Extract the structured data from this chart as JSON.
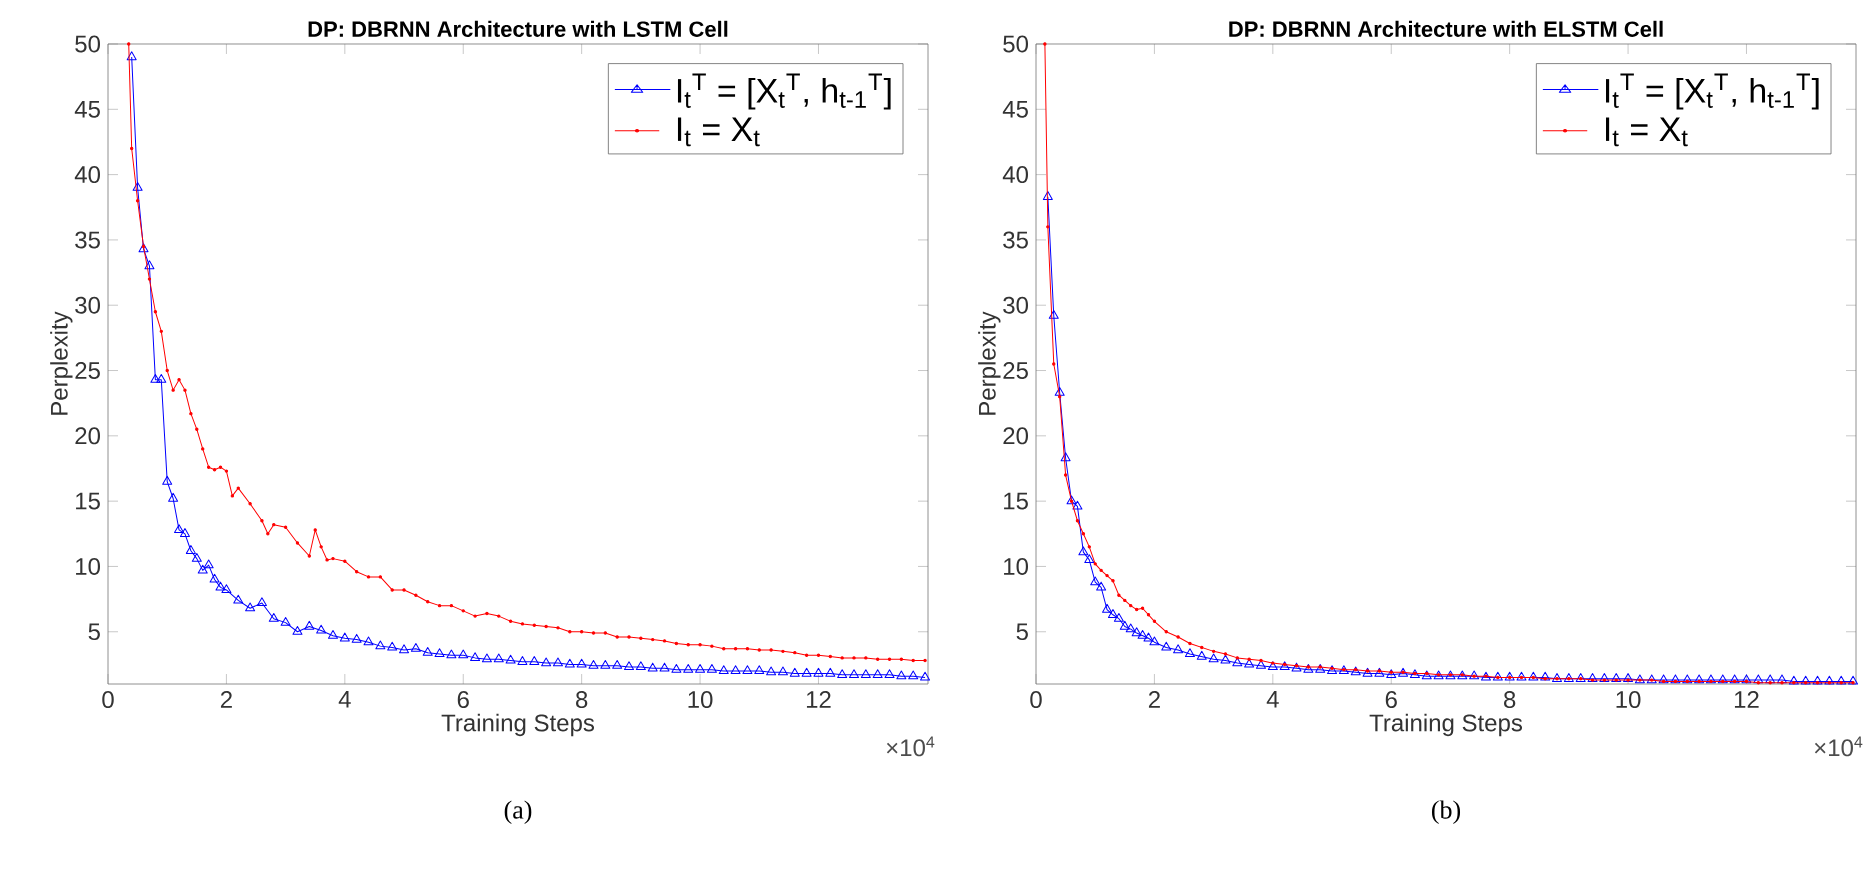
{
  "chart_data": [
    {
      "type": "line",
      "title": "DP: DBRNN Architecture with LSTM Cell",
      "xlabel": "Training Steps",
      "ylabel": "Perplexity",
      "xlim": [
        0,
        13.85
      ],
      "ylim": [
        1,
        50
      ],
      "xticks": [
        0,
        2,
        4,
        6,
        8,
        10,
        12
      ],
      "yticks": [
        5,
        10,
        15,
        20,
        25,
        30,
        35,
        40,
        45,
        50
      ],
      "legend": "top right",
      "line_style": "solid",
      "annotations": [
        "×10$^{4}$",
        "(a)"
      ],
      "series": [
        {
          "name": "I$_{t}$$^{T}$ = [X$_{t}$$^{T}$, h$_{t-1}$$^{T}$]",
          "color": "#0000ff",
          "marker": "triangle",
          "x": [
            0.4,
            0.5,
            0.6,
            0.7,
            0.8,
            0.9,
            1.0,
            1.1,
            1.2,
            1.3,
            1.4,
            1.5,
            1.6,
            1.7,
            1.8,
            1.9,
            2.0,
            2.2,
            2.4,
            2.6,
            2.8,
            3.0,
            3.2,
            3.4,
            3.6,
            3.8,
            4.0,
            4.2,
            4.4,
            4.6,
            4.8,
            5.0,
            5.2,
            5.4,
            5.6,
            5.8,
            6.0,
            6.2,
            6.4,
            6.6,
            6.8,
            7.0,
            7.2,
            7.4,
            7.6,
            7.8,
            8.0,
            8.2,
            8.4,
            8.6,
            8.8,
            9.0,
            9.2,
            9.4,
            9.6,
            9.8,
            10.0,
            10.2,
            10.4,
            10.6,
            10.8,
            11.0,
            11.2,
            11.4,
            11.6,
            11.8,
            12.0,
            12.2,
            12.4,
            12.6,
            12.8,
            13.0,
            13.2,
            13.4,
            13.6,
            13.8
          ],
          "values": [
            49,
            39,
            34.3,
            33,
            24.3,
            24.3,
            16.5,
            15.2,
            12.8,
            12.5,
            11.2,
            10.6,
            9.7,
            10.1,
            9.0,
            8.4,
            8.2,
            7.4,
            6.8,
            7.2,
            6.0,
            5.7,
            5.0,
            5.4,
            5.1,
            4.7,
            4.5,
            4.4,
            4.2,
            3.9,
            3.8,
            3.6,
            3.7,
            3.4,
            3.3,
            3.2,
            3.2,
            3.0,
            2.9,
            2.9,
            2.8,
            2.7,
            2.7,
            2.6,
            2.6,
            2.5,
            2.5,
            2.4,
            2.4,
            2.4,
            2.3,
            2.3,
            2.2,
            2.2,
            2.1,
            2.1,
            2.1,
            2.1,
            2.0,
            2.0,
            2.0,
            2.0,
            1.9,
            1.9,
            1.8,
            1.8,
            1.8,
            1.8,
            1.7,
            1.7,
            1.7,
            1.7,
            1.7,
            1.6,
            1.6,
            1.5
          ]
        },
        {
          "name": "I$_{t}$ = X$_{t}$",
          "color": "#ff0000",
          "marker": "circle",
          "x": [
            0.35,
            0.4,
            0.5,
            0.6,
            0.7,
            0.8,
            0.9,
            1.0,
            1.1,
            1.2,
            1.3,
            1.4,
            1.5,
            1.6,
            1.7,
            1.8,
            1.9,
            2.0,
            2.1,
            2.2,
            2.4,
            2.6,
            2.7,
            2.8,
            3.0,
            3.2,
            3.4,
            3.5,
            3.6,
            3.7,
            3.8,
            4.0,
            4.2,
            4.4,
            4.6,
            4.8,
            5.0,
            5.2,
            5.4,
            5.6,
            5.8,
            6.0,
            6.2,
            6.4,
            6.6,
            6.8,
            7.0,
            7.2,
            7.4,
            7.6,
            7.8,
            8.0,
            8.2,
            8.4,
            8.6,
            8.8,
            9.0,
            9.2,
            9.4,
            9.6,
            9.8,
            10.0,
            10.2,
            10.4,
            10.6,
            10.8,
            11.0,
            11.2,
            11.4,
            11.6,
            11.8,
            12.0,
            12.2,
            12.4,
            12.6,
            12.8,
            13.0,
            13.2,
            13.4,
            13.6,
            13.8
          ],
          "values": [
            50,
            42,
            38,
            34.5,
            32,
            29.5,
            28,
            25,
            23.5,
            24.3,
            23.5,
            21.7,
            20.5,
            19,
            17.6,
            17.4,
            17.6,
            17.3,
            15.4,
            16,
            14.8,
            13.5,
            12.5,
            13.2,
            13.0,
            11.8,
            10.8,
            12.8,
            11.5,
            10.5,
            10.6,
            10.4,
            9.6,
            9.2,
            9.2,
            8.2,
            8.2,
            7.8,
            7.3,
            7.0,
            7.0,
            6.6,
            6.2,
            6.4,
            6.2,
            5.8,
            5.6,
            5.5,
            5.4,
            5.3,
            5.0,
            5.0,
            4.9,
            4.9,
            4.6,
            4.6,
            4.5,
            4.4,
            4.3,
            4.1,
            4.0,
            4.0,
            3.9,
            3.7,
            3.7,
            3.7,
            3.6,
            3.6,
            3.5,
            3.4,
            3.2,
            3.2,
            3.1,
            3.0,
            3.0,
            3.0,
            2.9,
            2.9,
            2.9,
            2.8,
            2.8
          ]
        }
      ]
    },
    {
      "type": "line",
      "title": "DP: DBRNN Architecture with ELSTM Cell",
      "xlabel": "Training Steps",
      "ylabel": "Perplexity",
      "xlim": [
        0,
        13.85
      ],
      "ylim": [
        1,
        50
      ],
      "xticks": [
        0,
        2,
        4,
        6,
        8,
        10,
        12
      ],
      "yticks": [
        5,
        10,
        15,
        20,
        25,
        30,
        35,
        40,
        45,
        50
      ],
      "legend": "top right",
      "line_style": "solid",
      "annotations": [
        "×10$^{4}$",
        "(b)"
      ],
      "series": [
        {
          "name": "I$_{t}$$^{T}$ = [X$_{t}$$^{T}$, h$_{t-1}$$^{T}$]",
          "color": "#0000ff",
          "marker": "triangle",
          "x": [
            0.2,
            0.3,
            0.4,
            0.5,
            0.6,
            0.7,
            0.8,
            0.9,
            1.0,
            1.1,
            1.2,
            1.3,
            1.4,
            1.5,
            1.6,
            1.7,
            1.8,
            1.9,
            2.0,
            2.2,
            2.4,
            2.6,
            2.8,
            3.0,
            3.2,
            3.4,
            3.6,
            3.8,
            4.0,
            4.2,
            4.4,
            4.6,
            4.8,
            5.0,
            5.2,
            5.4,
            5.6,
            5.8,
            6.0,
            6.2,
            6.4,
            6.6,
            6.8,
            7.0,
            7.2,
            7.4,
            7.6,
            7.8,
            8.0,
            8.2,
            8.4,
            8.6,
            8.8,
            9.0,
            9.2,
            9.4,
            9.6,
            9.8,
            10.0,
            10.2,
            10.4,
            10.6,
            10.8,
            11.0,
            11.2,
            11.4,
            11.6,
            11.8,
            12.0,
            12.2,
            12.4,
            12.6,
            12.8,
            13.0,
            13.2,
            13.4,
            13.6,
            13.8
          ],
          "values": [
            38.3,
            29.2,
            23.3,
            18.3,
            15.0,
            14.6,
            11.1,
            10.5,
            8.8,
            8.4,
            6.7,
            6.3,
            6.0,
            5.4,
            5.2,
            4.9,
            4.7,
            4.5,
            4.2,
            3.8,
            3.6,
            3.3,
            3.1,
            2.9,
            2.8,
            2.6,
            2.5,
            2.4,
            2.3,
            2.3,
            2.2,
            2.1,
            2.1,
            2.0,
            2.0,
            1.9,
            1.8,
            1.8,
            1.7,
            1.8,
            1.7,
            1.6,
            1.6,
            1.6,
            1.6,
            1.6,
            1.5,
            1.5,
            1.5,
            1.5,
            1.5,
            1.5,
            1.4,
            1.4,
            1.4,
            1.4,
            1.4,
            1.4,
            1.4,
            1.3,
            1.3,
            1.3,
            1.3,
            1.3,
            1.3,
            1.3,
            1.3,
            1.3,
            1.3,
            1.3,
            1.3,
            1.3,
            1.2,
            1.2,
            1.2,
            1.2,
            1.2,
            1.2
          ]
        },
        {
          "name": "I$_{t}$ = X$_{t}$",
          "color": "#ff0000",
          "marker": "circle",
          "x": [
            0.15,
            0.2,
            0.3,
            0.4,
            0.5,
            0.6,
            0.7,
            0.8,
            0.9,
            1.0,
            1.1,
            1.2,
            1.3,
            1.4,
            1.5,
            1.6,
            1.7,
            1.8,
            1.9,
            2.0,
            2.2,
            2.4,
            2.6,
            2.8,
            3.0,
            3.2,
            3.4,
            3.6,
            3.8,
            4.0,
            4.2,
            4.4,
            4.6,
            4.8,
            5.0,
            5.2,
            5.4,
            5.6,
            5.8,
            6.0,
            6.2,
            6.4,
            6.6,
            6.8,
            7.0,
            7.2,
            7.4,
            7.6,
            7.8,
            8.0,
            8.2,
            8.4,
            8.6,
            8.8,
            9.0,
            9.2,
            9.4,
            9.6,
            9.8,
            10.0,
            10.2,
            10.4,
            10.6,
            10.8,
            11.0,
            11.2,
            11.4,
            11.6,
            11.8,
            12.0,
            12.2,
            12.4,
            12.6,
            12.8,
            13.0,
            13.2,
            13.4,
            13.6,
            13.8
          ],
          "values": [
            50,
            36,
            25.5,
            23,
            17,
            15,
            13.5,
            12.5,
            11.5,
            10.2,
            9.7,
            9.3,
            8.9,
            7.8,
            7.4,
            7.0,
            6.7,
            6.8,
            6.3,
            5.8,
            5.0,
            4.6,
            4.1,
            3.8,
            3.5,
            3.3,
            3.0,
            2.9,
            2.8,
            2.6,
            2.5,
            2.4,
            2.3,
            2.3,
            2.2,
            2.1,
            2.1,
            2.0,
            2.0,
            1.9,
            1.9,
            1.8,
            1.8,
            1.7,
            1.7,
            1.7,
            1.6,
            1.6,
            1.5,
            1.5,
            1.5,
            1.5,
            1.4,
            1.4,
            1.4,
            1.4,
            1.3,
            1.3,
            1.3,
            1.3,
            1.3,
            1.3,
            1.2,
            1.2,
            1.2,
            1.2,
            1.2,
            1.2,
            1.2,
            1.2,
            1.1,
            1.1,
            1.1,
            1.1,
            1.1,
            1.1,
            1.1,
            1.1,
            1.1
          ]
        }
      ]
    }
  ]
}
